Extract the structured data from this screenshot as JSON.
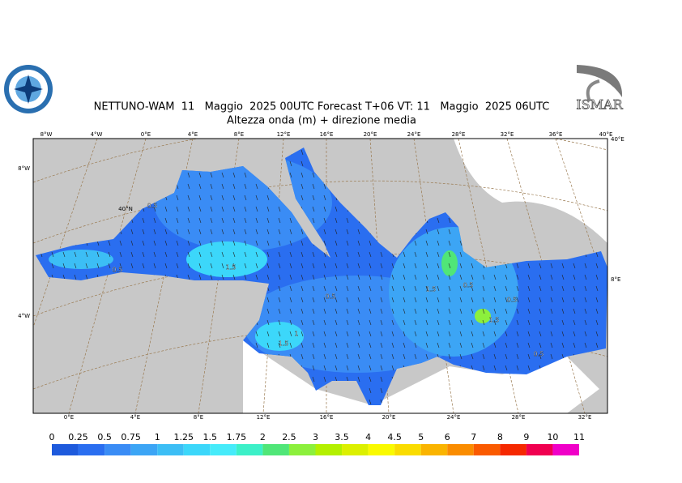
{
  "header": {
    "title": "NETTUNO-WAM  11   Maggio  2025 00UTC Forecast T+06 VT: 11   Maggio  2025 06UTC",
    "subtitle": "Altezza onda (m) + direzione media",
    "logo_text": "ISMAR"
  },
  "map": {
    "top_lon_labels": [
      "8°W",
      "4°W",
      "0°E",
      "4°E",
      "8°E",
      "12°E",
      "16°E",
      "20°E",
      "24°E",
      "28°E",
      "32°E",
      "36°E",
      "40°E"
    ],
    "bottom_lon_labels": [
      "0°E",
      "4°E",
      "8°E",
      "12°E",
      "16°E",
      "20°E",
      "24°E",
      "28°E",
      "32°E"
    ],
    "left_lat_labels": [
      "8°W",
      "4°W"
    ],
    "right_lat_labels": [
      "40°E",
      "8°E"
    ],
    "lat_label": "40°N",
    "contour_labels": [
      "0.5",
      "0.5",
      "1.5",
      "0.5",
      "1.5",
      "1",
      "1.5",
      "0.5",
      "1.5",
      "0.5",
      "0.5"
    ]
  },
  "colorbar": {
    "levels": [
      0,
      0.25,
      0.5,
      0.75,
      1,
      1.25,
      1.5,
      1.75,
      2,
      2.5,
      3,
      3.5,
      4,
      4.5,
      5,
      6,
      7,
      8,
      9,
      10,
      11
    ],
    "colors": [
      "#1e5adc",
      "#2a6ef0",
      "#3a8cf5",
      "#3ca5f5",
      "#3cbef5",
      "#3cd7fa",
      "#46ebfa",
      "#3cf0c8",
      "#50e678",
      "#8cf03c",
      "#b4f000",
      "#dcf000",
      "#fafa00",
      "#fadc00",
      "#fab400",
      "#fa8c00",
      "#fa5a00",
      "#f52800",
      "#f00050",
      "#f000c8"
    ]
  }
}
